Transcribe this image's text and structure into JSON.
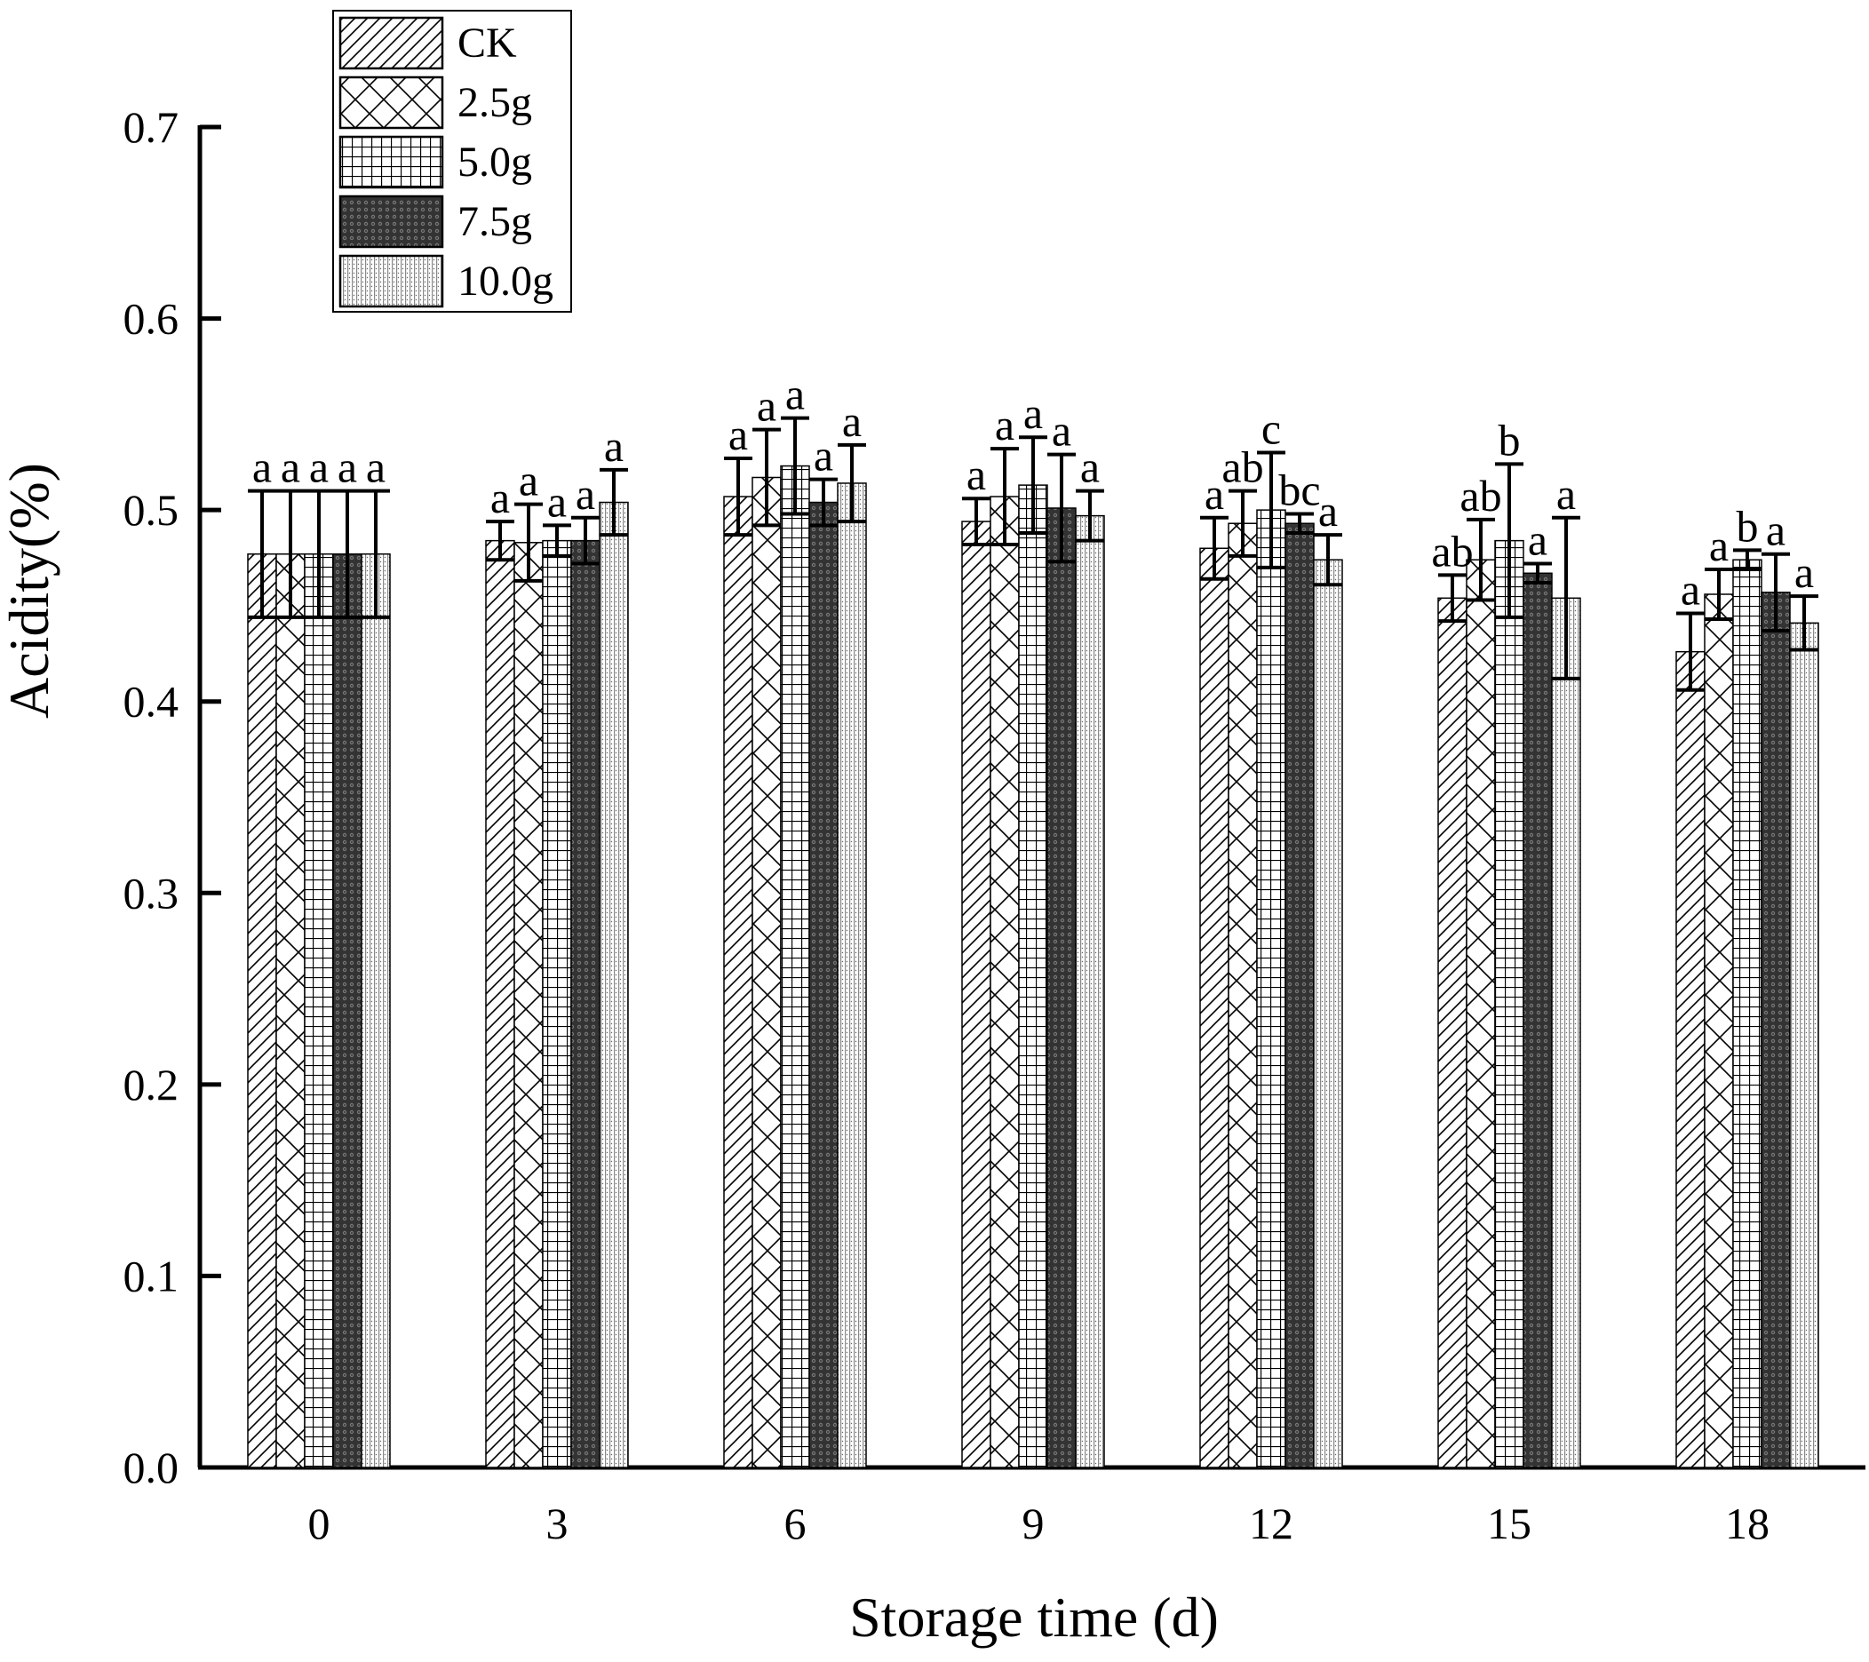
{
  "chart_data": {
    "type": "bar",
    "xlabel": "Storage time (d)",
    "ylabel": "Acidity(%)",
    "ylim": [
      0,
      0.7
    ],
    "yticks": [
      "0.0",
      "0.1",
      "0.2",
      "0.3",
      "0.4",
      "0.5",
      "0.6",
      "0.7"
    ],
    "ytick_values": [
      0,
      0.1,
      0.2,
      0.3,
      0.4,
      0.5,
      0.6,
      0.7
    ],
    "categories": [
      "0",
      "3",
      "6",
      "9",
      "12",
      "15",
      "18"
    ],
    "legend_position": "top-left",
    "grid": false,
    "series": [
      {
        "name": "CK",
        "pattern": "diagonal",
        "values": [
          0.477,
          0.484,
          0.507,
          0.494,
          0.48,
          0.454,
          0.426
        ],
        "errors": [
          0.033,
          0.01,
          0.02,
          0.012,
          0.016,
          0.012,
          0.02
        ],
        "labels": [
          "a",
          "a",
          "a",
          "a",
          "a",
          "ab",
          "a"
        ]
      },
      {
        "name": "2.5g",
        "pattern": "crosshatch",
        "values": [
          0.477,
          0.483,
          0.517,
          0.507,
          0.493,
          0.474,
          0.456
        ],
        "errors": [
          0.033,
          0.02,
          0.025,
          0.025,
          0.017,
          0.021,
          0.013
        ],
        "labels": [
          "a",
          "a",
          "a",
          "a",
          "ab",
          "ab",
          "a"
        ]
      },
      {
        "name": "5.0g",
        "pattern": "grid",
        "values": [
          0.477,
          0.484,
          0.523,
          0.513,
          0.5,
          0.484,
          0.474
        ],
        "errors": [
          0.033,
          0.008,
          0.025,
          0.025,
          0.03,
          0.04,
          0.005
        ],
        "labels": [
          "a",
          "a",
          "a",
          "a",
          "c",
          "b",
          "b"
        ]
      },
      {
        "name": "7.5g",
        "pattern": "dark",
        "values": [
          0.477,
          0.484,
          0.504,
          0.501,
          0.493,
          0.467,
          0.457
        ],
        "errors": [
          0.033,
          0.012,
          0.012,
          0.028,
          0.005,
          0.005,
          0.02
        ],
        "labels": [
          "a",
          "a",
          "a",
          "a",
          "bc",
          "a",
          "a"
        ]
      },
      {
        "name": "10.0g",
        "pattern": "dotted",
        "values": [
          0.477,
          0.504,
          0.514,
          0.497,
          0.474,
          0.454,
          0.441
        ],
        "errors": [
          0.033,
          0.017,
          0.02,
          0.013,
          0.013,
          0.042,
          0.014
        ],
        "labels": [
          "a",
          "a",
          "a",
          "a",
          "a",
          "a",
          "a"
        ]
      }
    ]
  }
}
